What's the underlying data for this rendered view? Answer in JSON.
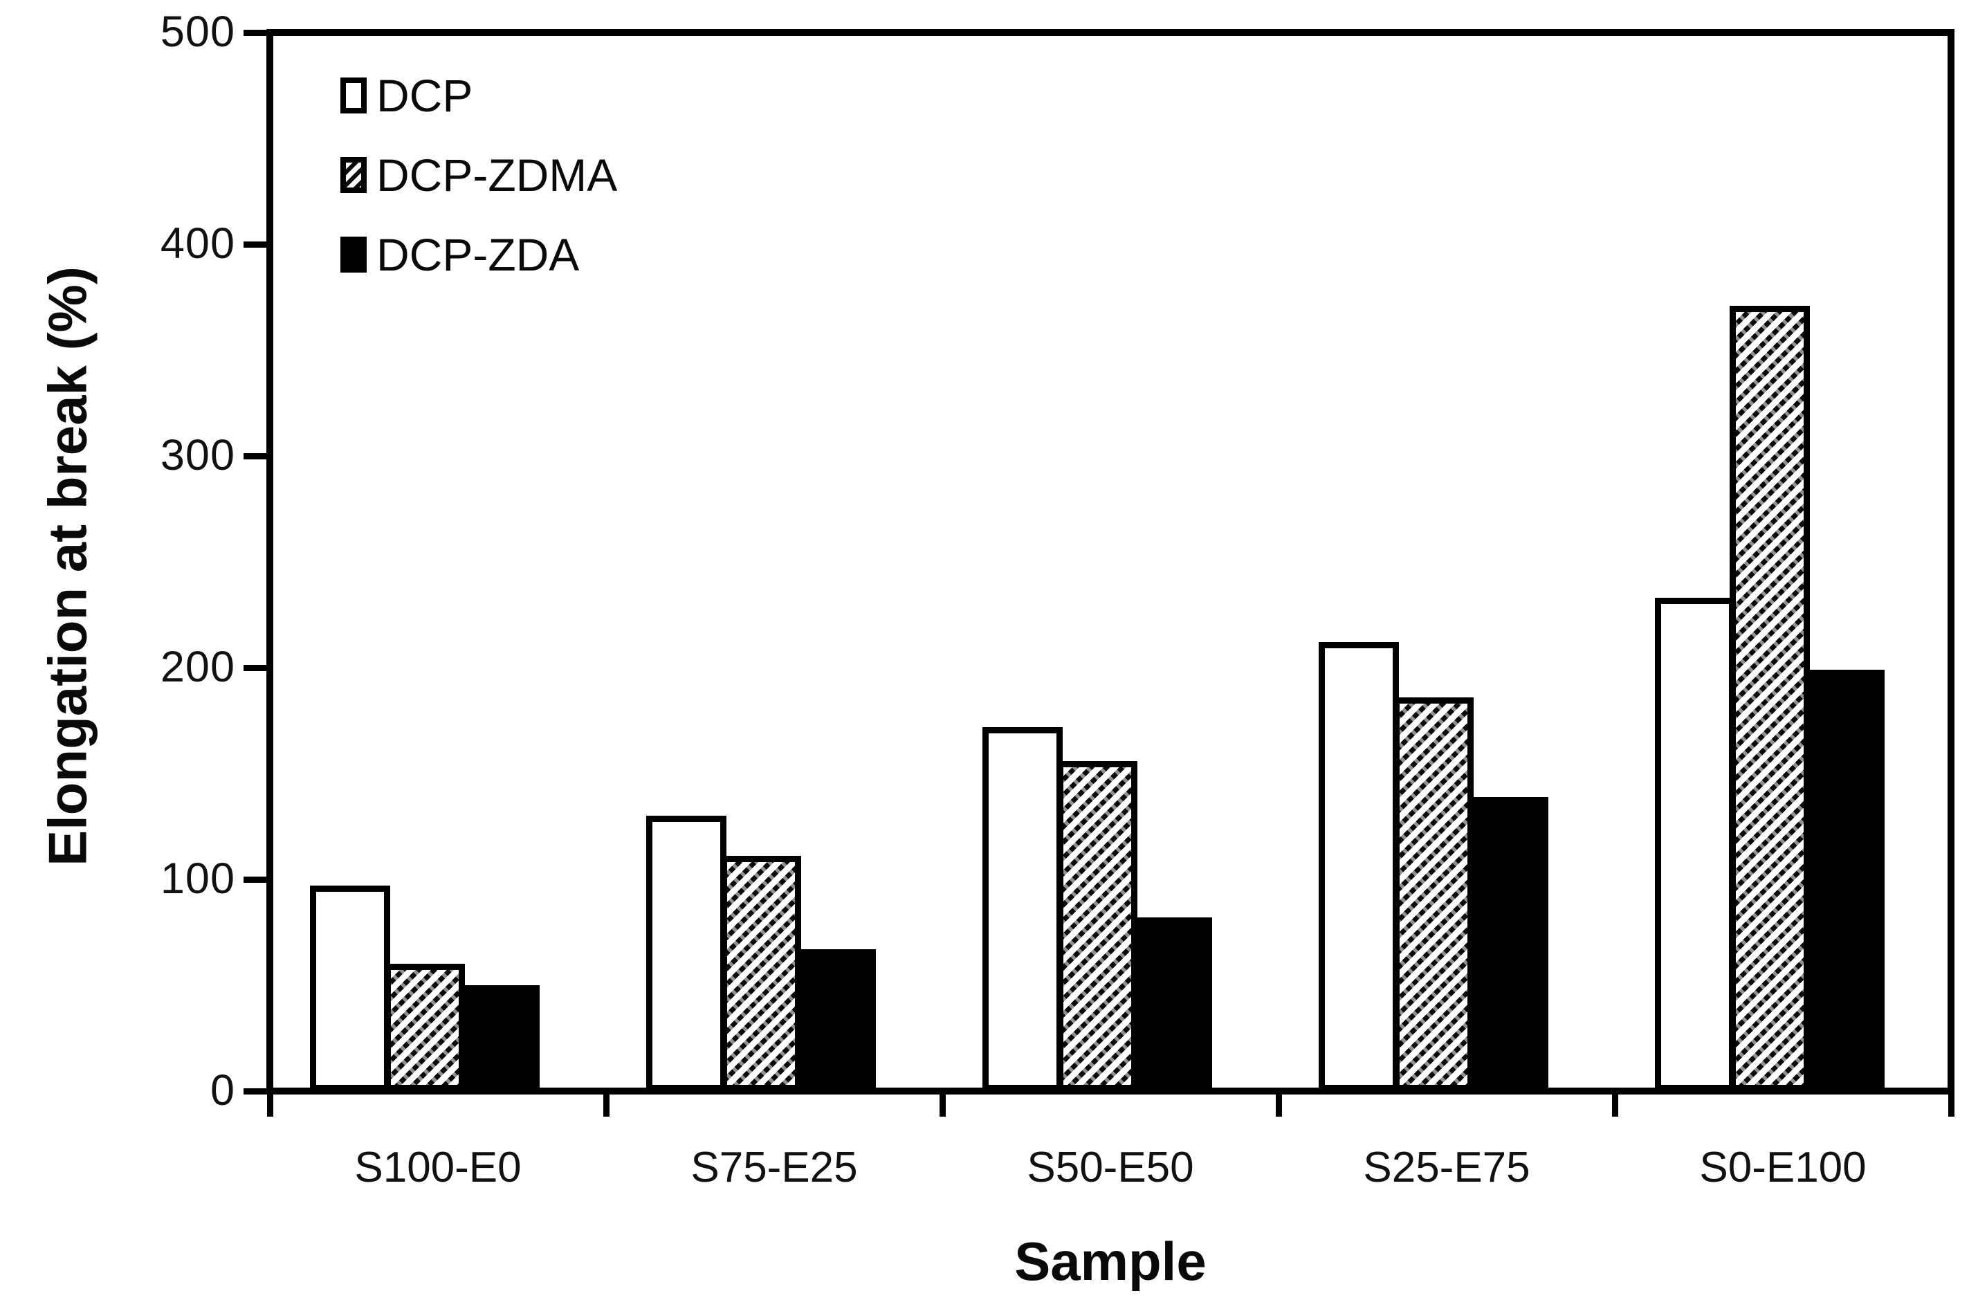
{
  "chart_data": {
    "type": "bar",
    "title": "",
    "xlabel": "Sample",
    "ylabel": "Elongation at break (%)",
    "ylim": [
      0,
      500
    ],
    "yticks": [
      0,
      100,
      200,
      300,
      400,
      500
    ],
    "categories": [
      "S100-E0",
      "S75-E25",
      "S50-E50",
      "S25-E75",
      "S0-E100"
    ],
    "series": [
      {
        "name": "DCP",
        "fill": "white",
        "values": [
          97,
          130,
          172,
          212,
          233
        ]
      },
      {
        "name": "DCP-ZDMA",
        "fill": "hatch",
        "values": [
          60,
          111,
          156,
          186,
          371
        ]
      },
      {
        "name": "DCP-ZDA",
        "fill": "black",
        "values": [
          50,
          67,
          82,
          139,
          199
        ]
      }
    ],
    "legend_position": "top-left",
    "grid": false,
    "colors": {
      "foreground": "#000000",
      "background": "#ffffff"
    }
  }
}
